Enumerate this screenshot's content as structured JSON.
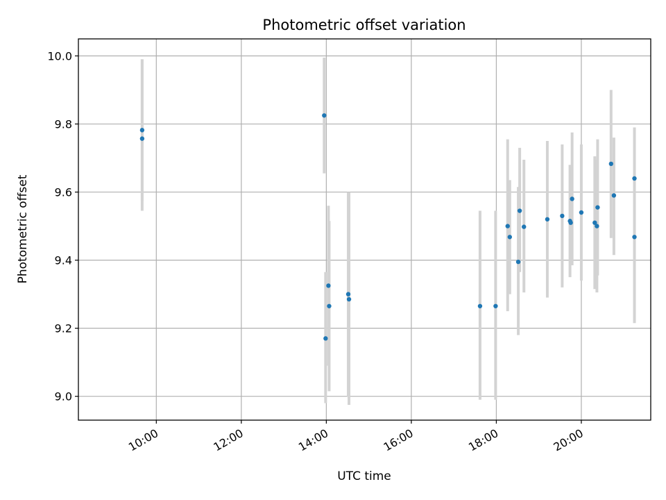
{
  "chart_data": {
    "type": "scatter",
    "title": "Photometric offset variation",
    "xlabel": "UTC time",
    "ylabel": "Photometric offset",
    "x_tick_labels": [
      "10:00",
      "12:00",
      "14:00",
      "16:00",
      "18:00",
      "20:00"
    ],
    "x_tick_values": [
      "10:00",
      "12:00",
      "14:00",
      "16:00",
      "18:00",
      "20:00"
    ],
    "y_tick_labels": [
      "9.0",
      "9.2",
      "9.4",
      "9.6",
      "9.8",
      "10.0"
    ],
    "y_tick_values": [
      9.0,
      9.2,
      9.4,
      9.6,
      9.8,
      10.0
    ],
    "xlim": [
      "08:10",
      "21:38"
    ],
    "ylim": [
      8.93,
      10.05
    ],
    "grid": true,
    "point_color": "#1f77b4",
    "errorbar_color": "#d3d3d3",
    "points": [
      {
        "x": "09:40",
        "y": 9.782,
        "ylow": 9.575,
        "yhigh": 9.99
      },
      {
        "x": "09:40",
        "y": 9.757,
        "ylow": 9.545,
        "yhigh": 9.99
      },
      {
        "x": "13:57",
        "y": 9.825,
        "ylow": 9.655,
        "yhigh": 9.995
      },
      {
        "x": "13:59",
        "y": 9.17,
        "ylow": 8.98,
        "yhigh": 9.365
      },
      {
        "x": "14:03",
        "y": 9.325,
        "ylow": 9.09,
        "yhigh": 9.56
      },
      {
        "x": "14:04",
        "y": 9.265,
        "ylow": 9.015,
        "yhigh": 9.515
      },
      {
        "x": "14:31",
        "y": 9.3,
        "ylow": 9.0,
        "yhigh": 9.6
      },
      {
        "x": "14:32",
        "y": 9.285,
        "ylow": 8.975,
        "yhigh": 9.6
      },
      {
        "x": "17:37",
        "y": 9.265,
        "ylow": 8.99,
        "yhigh": 9.545
      },
      {
        "x": "17:59",
        "y": 9.265,
        "ylow": 8.99,
        "yhigh": 9.545
      },
      {
        "x": "18:16",
        "y": 9.5,
        "ylow": 9.25,
        "yhigh": 9.755
      },
      {
        "x": "18:19",
        "y": 9.468,
        "ylow": 9.3,
        "yhigh": 9.635
      },
      {
        "x": "18:31",
        "y": 9.395,
        "ylow": 9.18,
        "yhigh": 9.615
      },
      {
        "x": "18:33",
        "y": 9.545,
        "ylow": 9.365,
        "yhigh": 9.73
      },
      {
        "x": "18:39",
        "y": 9.498,
        "ylow": 9.305,
        "yhigh": 9.695
      },
      {
        "x": "19:12",
        "y": 9.52,
        "ylow": 9.29,
        "yhigh": 9.75
      },
      {
        "x": "19:33",
        "y": 9.53,
        "ylow": 9.32,
        "yhigh": 9.74
      },
      {
        "x": "19:44",
        "y": 9.515,
        "ylow": 9.35,
        "yhigh": 9.68
      },
      {
        "x": "19:45",
        "y": 9.51,
        "ylow": 9.385,
        "yhigh": 9.635
      },
      {
        "x": "19:47",
        "y": 9.58,
        "ylow": 9.385,
        "yhigh": 9.775
      },
      {
        "x": "20:00",
        "y": 9.54,
        "ylow": 9.34,
        "yhigh": 9.74
      },
      {
        "x": "20:19",
        "y": 9.51,
        "ylow": 9.315,
        "yhigh": 9.705
      },
      {
        "x": "20:22",
        "y": 9.5,
        "ylow": 9.305,
        "yhigh": 9.695
      },
      {
        "x": "20:23",
        "y": 9.555,
        "ylow": 9.355,
        "yhigh": 9.755
      },
      {
        "x": "20:42",
        "y": 9.683,
        "ylow": 9.465,
        "yhigh": 9.9
      },
      {
        "x": "20:46",
        "y": 9.59,
        "ylow": 9.415,
        "yhigh": 9.76
      },
      {
        "x": "21:15",
        "y": 9.64,
        "ylow": 9.55,
        "yhigh": 9.79
      },
      {
        "x": "21:15",
        "y": 9.468,
        "ylow": 9.215,
        "yhigh": 9.72
      }
    ]
  }
}
